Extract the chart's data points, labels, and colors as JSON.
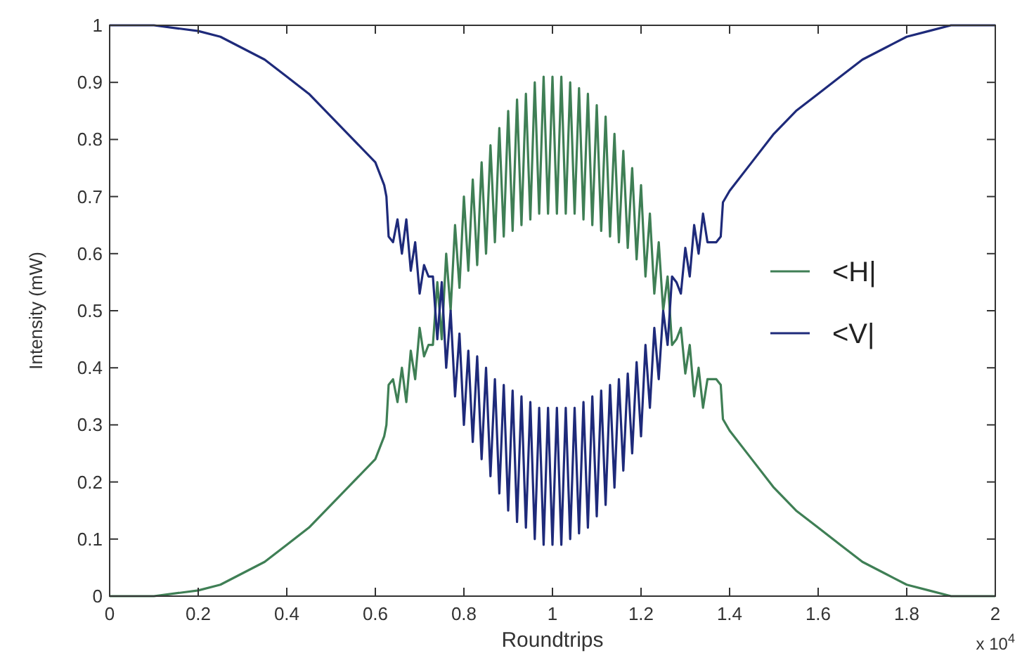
{
  "chart_data": {
    "type": "line",
    "xlabel": "Roundtrips",
    "ylabel": "Intensity (mW)",
    "annotations": [
      "x 10$^{4}$"
    ],
    "x": [
      0,
      0.05,
      0.1,
      0.15,
      0.2,
      0.25,
      0.3,
      0.35,
      0.4,
      0.45,
      0.5,
      0.55,
      0.6,
      0.62,
      0.625,
      0.63,
      0.64,
      0.65,
      0.66,
      0.67,
      0.68,
      0.69,
      0.7,
      0.71,
      0.72,
      0.73,
      0.74,
      0.75,
      0.76,
      0.77,
      0.78,
      0.79,
      0.8,
      0.81,
      0.82,
      0.83,
      0.84,
      0.85,
      0.86,
      0.87,
      0.88,
      0.89,
      0.9,
      0.91,
      0.92,
      0.93,
      0.94,
      0.95,
      0.96,
      0.97,
      0.98,
      0.99,
      1,
      1.01,
      1.02,
      1.03,
      1.04,
      1.05,
      1.06,
      1.07,
      1.08,
      1.09,
      1.1,
      1.11,
      1.12,
      1.13,
      1.14,
      1.15,
      1.16,
      1.17,
      1.18,
      1.19,
      1.2,
      1.21,
      1.22,
      1.23,
      1.24,
      1.25,
      1.26,
      1.27,
      1.28,
      1.29,
      1.3,
      1.31,
      1.32,
      1.33,
      1.34,
      1.35,
      1.36,
      1.37,
      1.38,
      1.385,
      1.4,
      1.45,
      1.5,
      1.55,
      1.6,
      1.65,
      1.7,
      1.75,
      1.8,
      1.85,
      1.9,
      1.95,
      2
    ],
    "series": [
      {
        "name": "<H|",
        "color": "#3f7f55",
        "values": [
          0,
          0,
          0,
          0.005,
          0.01,
          0.02,
          0.04,
          0.06,
          0.09,
          0.12,
          0.16,
          0.2,
          0.24,
          0.28,
          0.3,
          0.37,
          0.38,
          0.34,
          0.4,
          0.34,
          0.43,
          0.38,
          0.47,
          0.42,
          0.44,
          0.44,
          0.55,
          0.45,
          0.6,
          0.5,
          0.65,
          0.54,
          0.7,
          0.57,
          0.73,
          0.58,
          0.76,
          0.6,
          0.79,
          0.62,
          0.82,
          0.63,
          0.85,
          0.64,
          0.87,
          0.65,
          0.88,
          0.66,
          0.9,
          0.67,
          0.91,
          0.67,
          0.91,
          0.67,
          0.91,
          0.67,
          0.9,
          0.67,
          0.89,
          0.66,
          0.88,
          0.65,
          0.86,
          0.64,
          0.84,
          0.63,
          0.81,
          0.62,
          0.78,
          0.61,
          0.75,
          0.59,
          0.72,
          0.56,
          0.67,
          0.53,
          0.62,
          0.5,
          0.56,
          0.44,
          0.45,
          0.47,
          0.39,
          0.44,
          0.35,
          0.4,
          0.33,
          0.38,
          0.38,
          0.38,
          0.37,
          0.31,
          0.29,
          0.24,
          0.19,
          0.15,
          0.12,
          0.09,
          0.06,
          0.04,
          0.02,
          0.01,
          0,
          0,
          0
        ]
      },
      {
        "name": "<V|",
        "color": "#1e2a7a",
        "values": [
          1,
          1,
          1,
          0.995,
          0.99,
          0.98,
          0.96,
          0.94,
          0.91,
          0.88,
          0.84,
          0.8,
          0.76,
          0.72,
          0.7,
          0.63,
          0.62,
          0.66,
          0.6,
          0.66,
          0.57,
          0.62,
          0.53,
          0.58,
          0.56,
          0.56,
          0.45,
          0.55,
          0.4,
          0.5,
          0.35,
          0.46,
          0.3,
          0.43,
          0.27,
          0.42,
          0.24,
          0.4,
          0.21,
          0.38,
          0.18,
          0.37,
          0.15,
          0.36,
          0.13,
          0.35,
          0.12,
          0.34,
          0.1,
          0.33,
          0.09,
          0.33,
          0.09,
          0.33,
          0.09,
          0.33,
          0.1,
          0.33,
          0.11,
          0.34,
          0.12,
          0.35,
          0.14,
          0.36,
          0.16,
          0.37,
          0.19,
          0.38,
          0.22,
          0.39,
          0.25,
          0.41,
          0.28,
          0.44,
          0.33,
          0.47,
          0.38,
          0.5,
          0.44,
          0.56,
          0.55,
          0.53,
          0.61,
          0.56,
          0.65,
          0.6,
          0.67,
          0.62,
          0.62,
          0.62,
          0.63,
          0.69,
          0.71,
          0.76,
          0.81,
          0.85,
          0.88,
          0.91,
          0.94,
          0.96,
          0.98,
          0.99,
          1,
          1,
          1
        ]
      }
    ],
    "xlim": [
      0,
      2
    ],
    "xticks": [
      0,
      0.2,
      0.4,
      0.6,
      0.8,
      1,
      1.2,
      1.4,
      1.6,
      1.8,
      2
    ],
    "ylim": [
      0,
      1
    ],
    "yticks": [
      0,
      0.1,
      0.2,
      0.3,
      0.4,
      0.5,
      0.6,
      0.7,
      0.8,
      0.9,
      1
    ],
    "grid": false,
    "legend": "right",
    "marker": "none",
    "line_style": "solid"
  }
}
